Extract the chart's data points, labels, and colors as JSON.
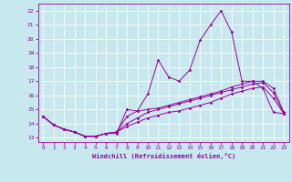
{
  "xlabel": "Windchill (Refroidissement éolien,°C)",
  "x": [
    0,
    1,
    2,
    3,
    4,
    5,
    6,
    7,
    8,
    9,
    10,
    11,
    12,
    13,
    14,
    15,
    16,
    17,
    18,
    19,
    20,
    21,
    22,
    23
  ],
  "line1": [
    14.5,
    13.9,
    13.6,
    13.4,
    13.1,
    13.1,
    13.3,
    13.3,
    15.0,
    14.9,
    16.1,
    18.5,
    17.3,
    17.0,
    17.8,
    19.9,
    21.0,
    22.0,
    20.5,
    17.0,
    17.0,
    16.5,
    14.8,
    14.7
  ],
  "line2": [
    14.5,
    13.9,
    13.6,
    13.4,
    13.1,
    13.1,
    13.3,
    13.4,
    14.5,
    14.9,
    15.0,
    15.1,
    15.3,
    15.5,
    15.7,
    15.9,
    16.1,
    16.3,
    16.6,
    16.8,
    17.0,
    17.0,
    16.5,
    14.8
  ],
  "line3": [
    14.5,
    13.9,
    13.6,
    13.4,
    13.1,
    13.1,
    13.3,
    13.4,
    14.0,
    14.4,
    14.8,
    15.0,
    15.2,
    15.4,
    15.6,
    15.8,
    16.0,
    16.2,
    16.4,
    16.6,
    16.8,
    16.9,
    16.2,
    14.7
  ],
  "line4": [
    14.5,
    13.9,
    13.6,
    13.4,
    13.1,
    13.1,
    13.3,
    13.4,
    13.8,
    14.1,
    14.4,
    14.6,
    14.8,
    14.9,
    15.1,
    15.3,
    15.5,
    15.8,
    16.1,
    16.3,
    16.5,
    16.6,
    15.8,
    14.7
  ],
  "color": "#990099",
  "bg_color": "#c8e8f0",
  "grid_color": "#ffffff",
  "ylim": [
    12.7,
    22.5
  ],
  "xlim": [
    -0.5,
    23.5
  ],
  "yticks": [
    13,
    14,
    15,
    16,
    17,
    18,
    19,
    20,
    21,
    22
  ],
  "xticks": [
    0,
    1,
    2,
    3,
    4,
    5,
    6,
    7,
    8,
    9,
    10,
    11,
    12,
    13,
    14,
    15,
    16,
    17,
    18,
    19,
    20,
    21,
    22,
    23
  ]
}
